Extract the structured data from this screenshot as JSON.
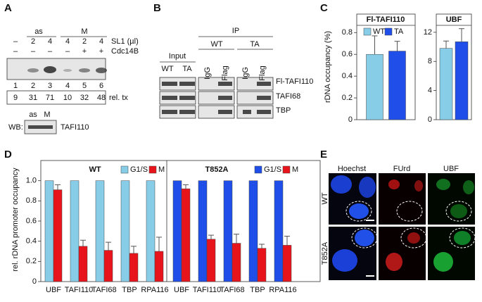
{
  "panel_a": {
    "letter": "A",
    "groups": [
      "as",
      "M"
    ],
    "sl1_label": "SL1 (µl)",
    "sl1": [
      "–",
      2,
      4,
      4,
      2,
      4
    ],
    "cdc_label": "Cdc14B",
    "cdc": [
      "–",
      "–",
      "–",
      "–",
      "+",
      "+"
    ],
    "lanes": [
      1,
      2,
      3,
      4,
      5,
      6
    ],
    "rel_tx": [
      9,
      31,
      71,
      10,
      32,
      48
    ],
    "rel_tx_label": "rel. tx",
    "wb_label": "WB:",
    "wb_lanes": [
      "as",
      "M"
    ],
    "wb_protein": "TAFI110"
  },
  "panel_b": {
    "letter": "B",
    "ip_label": "IP",
    "input_label": "Input",
    "input_lanes": [
      "WT",
      "TA"
    ],
    "ip_groups": [
      "WT",
      "TA"
    ],
    "ip_lanes": [
      "IgG",
      "Flag",
      "IgG",
      "Flag"
    ],
    "rows": [
      "Fl-TAFI110",
      "TAFI68",
      "TBP"
    ]
  },
  "panel_c": {
    "letter": "C"
  },
  "panel_d": {
    "letter": "D"
  },
  "panel_e": {
    "letter": "E",
    "columns": [
      "Hoechst",
      "FUrd",
      "UBF"
    ],
    "rows": [
      "WT",
      "T852A"
    ]
  },
  "chart_data": [
    {
      "type": "bar",
      "title": "Fl-TAFI110",
      "ylabel": "rDNA occupancy (%)",
      "ylim": [
        0,
        0.97
      ],
      "yticks": [
        0,
        0.2,
        0.4,
        0.6,
        0.8
      ],
      "legend": true,
      "series": [
        {
          "name": "WT",
          "color": "#87cde8",
          "values": [
            0.6
          ],
          "errors": [
            0.17
          ]
        },
        {
          "name": "TA",
          "color": "#1f4fe8",
          "values": [
            0.63
          ],
          "errors": [
            0.09
          ]
        }
      ]
    },
    {
      "type": "bar",
      "title": "UBF",
      "ylim": [
        0,
        14.5
      ],
      "yticks": [
        0,
        4,
        8,
        12
      ],
      "series": [
        {
          "color": "#87cde8",
          "values": [
            9.8
          ],
          "errors": [
            1.0
          ]
        },
        {
          "color": "#1f4fe8",
          "values": [
            10.7
          ],
          "errors": [
            1.8
          ]
        }
      ]
    },
    {
      "type": "bar",
      "title": "WT",
      "ylabel": "rel. rDNA promoter occupancy",
      "ylim": [
        0,
        1.2
      ],
      "yticks": [
        0,
        0.2,
        0.4,
        0.6,
        0.8,
        {
          "value": 1,
          "label": "1.0"
        }
      ],
      "legend": true,
      "categories": [
        "UBF",
        "TAFI110",
        "TAFI68",
        "TBP",
        "RPA116"
      ],
      "series": [
        {
          "name": "G1/S",
          "color": "#87cde8",
          "values": [
            1,
            1,
            1,
            1,
            1
          ]
        },
        {
          "name": "M",
          "color": "#e8141c",
          "values": [
            0.91,
            0.35,
            0.31,
            0.28,
            0.3
          ],
          "errors": [
            0.05,
            0.06,
            0.08,
            0.07,
            0.14
          ]
        }
      ]
    },
    {
      "type": "bar",
      "title": "T852A",
      "ylim": [
        0,
        1.2
      ],
      "legend": true,
      "categories": [
        "UBF",
        "TAFI110",
        "TAFI68",
        "TBP",
        "RPA116"
      ],
      "series": [
        {
          "name": "G1/S",
          "color": "#1f4fe8",
          "values": [
            1,
            1,
            1,
            1,
            1
          ]
        },
        {
          "name": "M",
          "color": "#e8141c",
          "values": [
            0.92,
            0.42,
            0.38,
            0.33,
            0.36
          ],
          "errors": [
            0.04,
            0.04,
            0.09,
            0.04,
            0.09
          ]
        }
      ]
    }
  ]
}
